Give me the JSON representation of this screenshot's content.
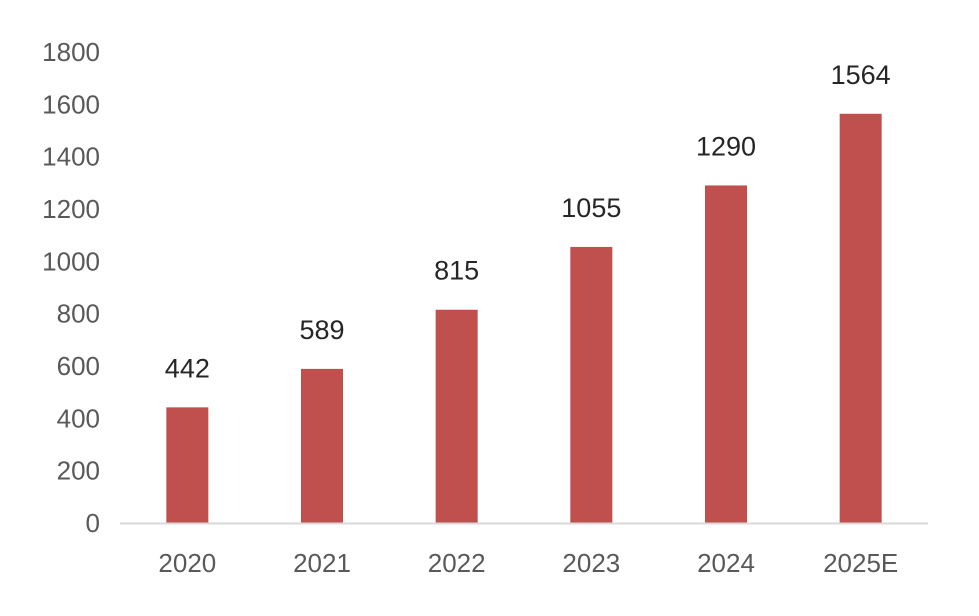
{
  "chart_data": {
    "type": "bar",
    "title": "",
    "xlabel": "",
    "ylabel": "",
    "categories": [
      "2020",
      "2021",
      "2022",
      "2023",
      "2024",
      "2025E"
    ],
    "values": [
      442,
      589,
      815,
      1055,
      1290,
      1564
    ],
    "data_labels": [
      "442",
      "589",
      "815",
      "1055",
      "1290",
      "1564"
    ],
    "ylim": [
      0,
      1800
    ],
    "yticks": [
      "0",
      "200",
      "400",
      "600",
      "800",
      "1000",
      "1200",
      "1400",
      "1600",
      "1800"
    ],
    "grid": false,
    "legend": "none",
    "bar_color": "#C0504D",
    "axis_color": "#D9D9D9"
  }
}
